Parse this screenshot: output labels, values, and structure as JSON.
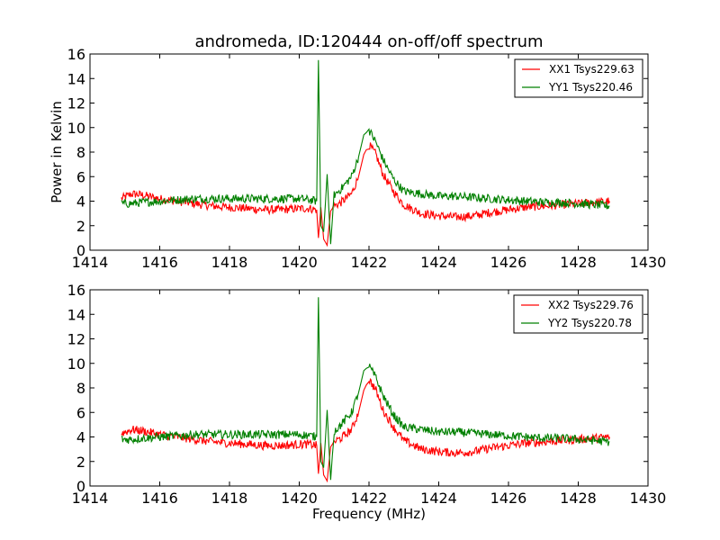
{
  "figure": {
    "title": "andromeda, ID:120444 on-off/off spectrum",
    "ylabel": "Power in Kelvin",
    "xlabel": "Frequency (MHz)"
  },
  "colors": {
    "red": "#ff0000",
    "green": "#008000"
  },
  "chart_data": [
    {
      "type": "line",
      "title": "andromeda, ID:120444 on-off/off spectrum",
      "xlabel": "",
      "ylabel": "Power in Kelvin",
      "xlim": [
        1414,
        1430
      ],
      "ylim": [
        0,
        16
      ],
      "xticks": [
        1414,
        1416,
        1418,
        1420,
        1422,
        1424,
        1426,
        1428,
        1430
      ],
      "yticks": [
        0,
        2,
        4,
        6,
        8,
        10,
        12,
        14,
        16
      ],
      "legend_position": "top-right",
      "x": [
        1414.9,
        1415.2,
        1415.5,
        1416.0,
        1416.5,
        1417.0,
        1417.5,
        1418.0,
        1418.5,
        1419.0,
        1419.5,
        1420.0,
        1420.3,
        1420.5,
        1420.55,
        1420.62,
        1420.7,
        1420.8,
        1420.9,
        1421.0,
        1421.2,
        1421.5,
        1421.7,
        1421.85,
        1422.0,
        1422.2,
        1422.4,
        1422.7,
        1423.0,
        1423.5,
        1424.0,
        1424.5,
        1425.0,
        1425.5,
        1426.0,
        1426.5,
        1427.0,
        1427.5,
        1428.0,
        1428.5,
        1428.9
      ],
      "series": [
        {
          "name": "XX1 Tsys229.63",
          "color": "red",
          "values": [
            4.2,
            4.6,
            4.5,
            4.2,
            4.0,
            3.8,
            3.6,
            3.5,
            3.4,
            3.3,
            3.3,
            3.4,
            3.4,
            3.3,
            1.0,
            3.5,
            0.9,
            0.4,
            3.2,
            3.6,
            3.9,
            4.6,
            6.0,
            7.8,
            8.6,
            7.8,
            6.2,
            4.8,
            3.7,
            3.0,
            2.8,
            2.7,
            2.8,
            3.1,
            3.3,
            3.5,
            3.6,
            3.7,
            3.8,
            3.9,
            4.0
          ]
        },
        {
          "name": "YY1 Tsys220.46",
          "color": "green",
          "values": [
            3.8,
            3.8,
            3.9,
            4.0,
            4.1,
            4.2,
            4.2,
            4.2,
            4.2,
            4.2,
            4.2,
            4.2,
            4.1,
            4.0,
            15.5,
            2.0,
            1.5,
            6.2,
            0.5,
            4.5,
            5.0,
            6.0,
            7.6,
            9.4,
            9.8,
            8.8,
            7.4,
            5.8,
            4.8,
            4.6,
            4.4,
            4.4,
            4.3,
            4.2,
            4.1,
            4.0,
            3.9,
            3.9,
            3.8,
            3.7,
            3.6
          ]
        }
      ]
    },
    {
      "type": "line",
      "title": "",
      "xlabel": "Frequency (MHz)",
      "ylabel": "",
      "xlim": [
        1414,
        1430
      ],
      "ylim": [
        0,
        16
      ],
      "xticks": [
        1414,
        1416,
        1418,
        1420,
        1422,
        1424,
        1426,
        1428,
        1430
      ],
      "yticks": [
        0,
        2,
        4,
        6,
        8,
        10,
        12,
        14,
        16
      ],
      "legend_position": "top-right",
      "x": [
        1414.9,
        1415.2,
        1415.5,
        1416.0,
        1416.5,
        1417.0,
        1417.5,
        1418.0,
        1418.5,
        1419.0,
        1419.5,
        1420.0,
        1420.3,
        1420.5,
        1420.55,
        1420.62,
        1420.7,
        1420.8,
        1420.9,
        1421.0,
        1421.2,
        1421.5,
        1421.7,
        1421.85,
        1422.0,
        1422.2,
        1422.4,
        1422.7,
        1423.0,
        1423.5,
        1424.0,
        1424.5,
        1425.0,
        1425.5,
        1426.0,
        1426.5,
        1427.0,
        1427.5,
        1428.0,
        1428.5,
        1428.9
      ],
      "series": [
        {
          "name": "XX2 Tsys229.76",
          "color": "red",
          "values": [
            4.3,
            4.6,
            4.5,
            4.2,
            4.0,
            3.8,
            3.6,
            3.5,
            3.4,
            3.3,
            3.3,
            3.4,
            3.4,
            3.3,
            1.0,
            3.5,
            0.9,
            0.4,
            3.2,
            3.6,
            3.9,
            4.6,
            6.0,
            7.8,
            8.7,
            7.8,
            6.2,
            4.8,
            3.7,
            3.0,
            2.8,
            2.7,
            2.8,
            3.1,
            3.3,
            3.5,
            3.6,
            3.7,
            3.8,
            3.9,
            4.0
          ]
        },
        {
          "name": "YY2 Tsys220.78",
          "color": "green",
          "values": [
            3.8,
            3.8,
            3.9,
            4.0,
            4.1,
            4.2,
            4.2,
            4.2,
            4.2,
            4.2,
            4.2,
            4.2,
            4.1,
            4.0,
            15.4,
            2.0,
            1.5,
            6.2,
            0.5,
            4.5,
            5.0,
            6.0,
            7.6,
            9.4,
            9.8,
            8.8,
            7.4,
            5.8,
            4.8,
            4.6,
            4.4,
            4.4,
            4.3,
            4.2,
            4.1,
            4.0,
            3.9,
            3.9,
            3.8,
            3.7,
            3.6
          ]
        }
      ]
    }
  ]
}
